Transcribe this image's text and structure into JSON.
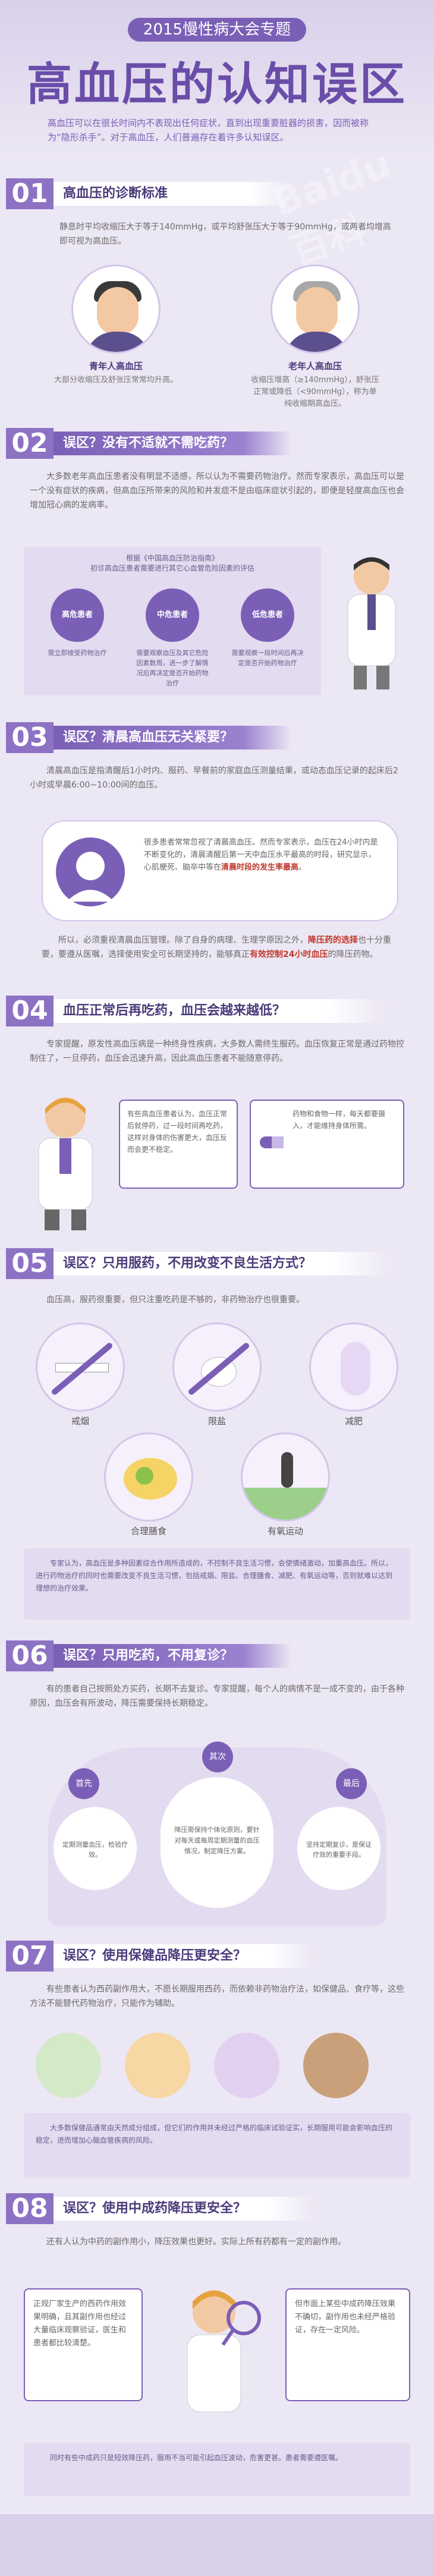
{
  "header": {
    "topic": "2015慢性病大会专题",
    "title": "高血压的认知误区",
    "intro": "高血压可以在很长时间内不表现出任何症状，直到出现重要脏器的损害，因而被称为“隐形杀手”。对于高血压，人们普遍存在着许多认知误区。"
  },
  "sections": [
    {
      "num": "01",
      "title": "高血压的诊断标准",
      "body": "静息时平均收缩压大于等于140mmHg，或平均舒张压大于等于90mmHg，或两者均增高即可视为高血压。",
      "young": {
        "title": "青年人高血压",
        "body": "大部分收缩压及舒张压常常均升高。"
      },
      "old": {
        "title": "老年人高血压",
        "body": "收缩压增高（≥140mmHg），舒张压正常或降低（<90mmHg），称为单纯收缩期高血压。"
      }
    },
    {
      "num": "02",
      "title": "误区？没有不适就不需吃药？",
      "body": "大多数老年高血压患者没有明显不适感，所以认为不需要药物治疗。然而专家表示，高血压可以是一个没有症状的疾病，但高血压所带来的风险和并发症不是由临床症状引起的，即便是轻度高血压也会增加冠心病的发病率。",
      "panel_title": "根据《中国高血压防治指南》\n初诊高血压患者需要进行其它心血管危险因素的评估",
      "nodes": [
        {
          "label": "高危患者",
          "desc": "需立即接受药物治疗"
        },
        {
          "label": "中危患者",
          "desc": "需要观察血压及其它危险因素数周，进一步了解情况后再决定是否开始药物治疗"
        },
        {
          "label": "低危患者",
          "desc": "需要观察一段时间后再决定是否开始药物治疗"
        }
      ]
    },
    {
      "num": "03",
      "title": "误区？清晨高血压无关紧要？",
      "body": "清晨高血压是指清醒后1小时内、服药、早餐前的家庭血压测量结果，或动态血压记录的起床后2小时或早晨6:00~10:00间的血压。",
      "bubble_plain": "很多患者常常忽视了清晨高血压。然而专家表示，血压在24小时内是不断变化的，清晨清醒后第一天中血压水平最高的时段，研究显示，心肌梗死、脑卒中等在",
      "bubble_hl": "清晨时段的发生率最高",
      "bubble_end": "。",
      "note_plain_1": "所以，必须重视清晨血压管理。除了自身的病理、生理学原因之外，",
      "note_hl_1": "降压药的选择",
      "note_plain_2": "也十分重要，要遵从医嘱，选择使用安全可长期坚持的，能够真正",
      "note_hl_2": "有效控制24小时血压",
      "note_plain_3": "的降压药物。"
    },
    {
      "num": "04",
      "title": "血压正常后再吃药，血压会越来越低？",
      "body": "专家提醒，原发性高血压病是一种终身性疾病，大多数人需终生服药。血压恢复正常是通过药物控制住了，一旦停药，血压会迅速升高，因此高血压患者不能随意停药。",
      "left_box": "有些高血压患者认为，血压正常后就停药，过一段时间再吃药，这样对身体的伤害更大，血压反而会更不稳定。",
      "right_box": "药物和食物一样，每天都要摄入，才能维持身体所需。"
    },
    {
      "num": "05",
      "title": "误区？只用服药，不用改变不良生活方式？",
      "body": "血压高，服药很重要，但只注重吃药是不够的，非药物治疗也很重要。",
      "items": [
        "戒烟",
        "限盐",
        "减肥",
        "合理膳食",
        "有氧运动"
      ],
      "note": "专家认为，高血压是多种因素综合作用所造成的，不控制不良生活习惯，会使情绪激动，加重高血压。所以，进行药物治疗的同时也需要改变不良生活习惯，包括戒烟、限盐、合理膳食、减肥、有氧运动等，否则就难以达到理想的治疗效果。"
    },
    {
      "num": "06",
      "title": "误区？只用吃药，不用复诊？",
      "body": "有的患者自己按照处方买药，长期不去复诊。专家提醒，每个人的病情不是一成不变的，由于各种原因，血压会有所波动，降压需要保持长期稳定。",
      "first": "首先",
      "first_text": "定期测量血压，检验疗效。",
      "second": "其次",
      "second_text": "降压需保持个体化原则，要针对每天或每周定期测量的血压情况，制定降压方案。",
      "last": "最后",
      "last_text": "坚持定期复诊，是保证疗效的重要手段。"
    },
    {
      "num": "07",
      "title": "误区？使用保健品降压更安全？",
      "body": "有些患者认为西药副作用大，不愿长期服用西药，而依赖非药物治疗法，如保健品、食疗等，这些方法不能替代药物治疗，只能作为辅助。",
      "note": "大多数保健品通常由天然成分组成，但它们的作用并未经过严格的临床试验证实，长期服用可能会影响血压的稳定，进而增加心脑血管疾病的风险。"
    },
    {
      "num": "08",
      "title": "误区？使用中成药降压更安全？",
      "body": "还有人认为中药的副作用小，降压效果也更好。实际上所有药都有一定的副作用。",
      "left_box": "正规厂家生产的西药作用效果明确，且其副作用也经过大量临床观察验证，医生和患者都比较清楚。",
      "right_box": "但市面上某些中成药降压效果不确切，副作用也未经严格验证，存在一定风险。",
      "note": "同时有些中成药只是短效降压药，服用不当可能引起血压波动，危害更甚。患者需要遵医嘱。"
    }
  ],
  "watermark": "Baidu 百科"
}
